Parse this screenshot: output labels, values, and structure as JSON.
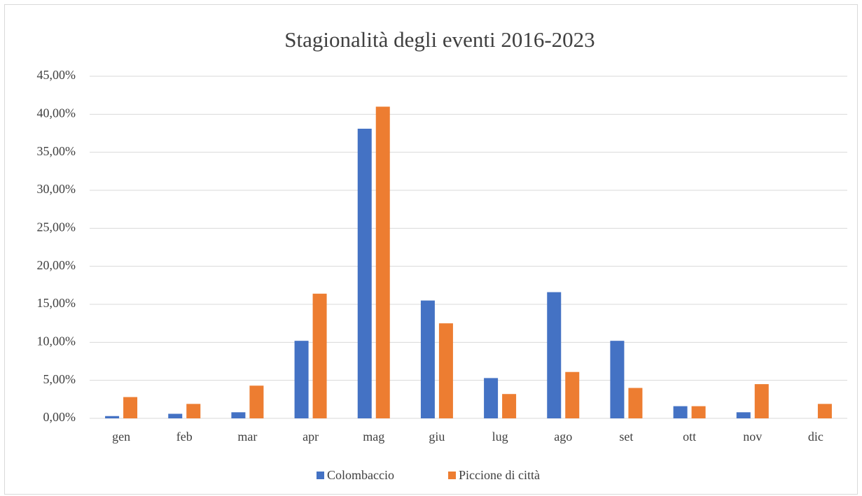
{
  "chart_data": {
    "type": "bar",
    "title": "Stagionalità degli eventi 2016-2023",
    "categories": [
      "gen",
      "feb",
      "mar",
      "apr",
      "mag",
      "giu",
      "lug",
      "ago",
      "set",
      "ott",
      "nov",
      "dic"
    ],
    "series": [
      {
        "name": "Colombaccio",
        "color": "#4472c4",
        "values": [
          0.3,
          0.6,
          0.8,
          10.2,
          38.1,
          15.5,
          5.3,
          16.6,
          10.2,
          1.6,
          0.8,
          0
        ]
      },
      {
        "name": "Piccione di città",
        "color": "#ed7d31",
        "values": [
          2.8,
          1.9,
          4.3,
          16.4,
          41.0,
          12.5,
          3.2,
          6.1,
          4.0,
          1.6,
          4.5,
          1.9
        ]
      }
    ],
    "ylim": [
      0,
      45
    ],
    "yticks": [
      {
        "value": 0,
        "label": "0,00%"
      },
      {
        "value": 5,
        "label": "5,00%"
      },
      {
        "value": 10,
        "label": "10,00%"
      },
      {
        "value": 15,
        "label": "15,00%"
      },
      {
        "value": 20,
        "label": "20,00%"
      },
      {
        "value": 25,
        "label": "25,00%"
      },
      {
        "value": 30,
        "label": "30,00%"
      },
      {
        "value": 35,
        "label": "35,00%"
      },
      {
        "value": 40,
        "label": "40,00%"
      },
      {
        "value": 45,
        "label": "45,00%"
      }
    ],
    "grid": true,
    "legend": "bottom"
  }
}
